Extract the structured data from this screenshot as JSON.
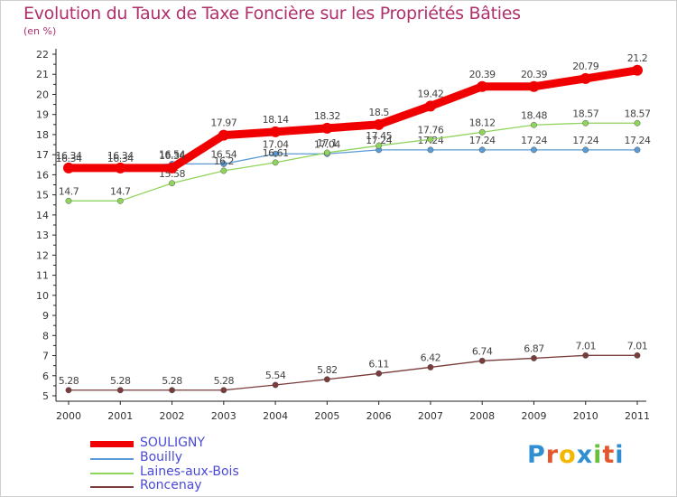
{
  "title": "Evolution du Taux de Taxe Foncière sur les Propriétés Bâties",
  "subtitle": "(en %)",
  "logo": {
    "chars": [
      "P",
      "r",
      "o",
      "x",
      "i",
      "t",
      "i"
    ],
    "colors": [
      "#2f8fd0",
      "#e4572e",
      "#f2b701",
      "#2f8fd0",
      "#6abf3f",
      "#e4572e",
      "#2f8fd0"
    ]
  },
  "chart_data": {
    "type": "line",
    "title": "Evolution du Taux de Taxe Foncière sur les Propriétés Bâties",
    "ylabel": "(en %)",
    "xlabel": "",
    "x": [
      "2000",
      "2001",
      "2002",
      "2003",
      "2004",
      "2005",
      "2006",
      "2007",
      "2008",
      "2009",
      "2010",
      "2011"
    ],
    "ylim": [
      5,
      22
    ],
    "yticks": [
      "5",
      "6",
      "7",
      "8",
      "9",
      "10",
      "11",
      "12",
      "13",
      "14",
      "15",
      "16",
      "17",
      "18",
      "19",
      "20",
      "21",
      "22"
    ],
    "grid": false,
    "legend_position": "bottom-left",
    "series": [
      {
        "name": "Bouilly",
        "color": "#5b9bd5",
        "values": [
          16.34,
          16.34,
          16.54,
          16.54,
          17.04,
          17.04,
          17.24,
          17.24,
          17.24,
          17.24,
          17.24,
          17.24
        ],
        "labels": [
          "16.34",
          "16.34",
          "16.54",
          "16.54",
          "17.04",
          "17.04",
          "17.24",
          "17.24",
          "17.24",
          "17.24",
          "17.24",
          "17.24"
        ]
      },
      {
        "name": "Laines-aux-Bois",
        "color": "#8fd45b",
        "values": [
          14.7,
          14.7,
          15.58,
          16.2,
          16.61,
          17.1,
          17.45,
          17.76,
          18.12,
          18.48,
          18.57,
          18.57
        ],
        "labels": [
          "14.7",
          "14.7",
          "15.58",
          "16.2",
          "16.61",
          "17.1",
          "17.45",
          "17.76",
          "18.12",
          "18.48",
          "18.57",
          "18.57"
        ]
      },
      {
        "name": "Roncenay",
        "color": "#7a3b3b",
        "values": [
          5.28,
          5.28,
          5.28,
          5.28,
          5.54,
          5.82,
          6.11,
          6.42,
          6.74,
          6.87,
          7.01,
          7.01
        ],
        "labels": [
          "5.28",
          "5.28",
          "5.28",
          "5.28",
          "5.54",
          "5.82",
          "6.11",
          "6.42",
          "6.74",
          "6.87",
          "7.01",
          "7.01"
        ]
      },
      {
        "name": "SOULIGNY",
        "color": "#f00000",
        "values": [
          16.34,
          16.34,
          16.34,
          17.97,
          18.14,
          18.32,
          18.5,
          19.42,
          20.39,
          20.39,
          20.79,
          21.2
        ],
        "labels": [
          "16.34",
          "16.34",
          "16.34",
          "17.97",
          "18.14",
          "18.32",
          "18.5",
          "19.42",
          "20.39",
          "20.39",
          "20.79",
          "21.2"
        ]
      }
    ],
    "legend_order": [
      "SOULIGNY",
      "Bouilly",
      "Laines-aux-Bois",
      "Roncenay"
    ]
  }
}
